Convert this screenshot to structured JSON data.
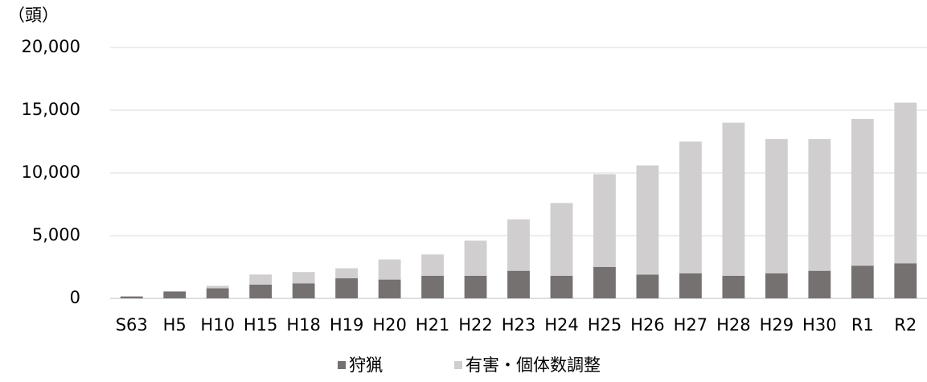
{
  "chart_data": {
    "type": "stacked_bar",
    "unit_label": "（頭）",
    "categories": [
      "S63",
      "H5",
      "H10",
      "H15",
      "H18",
      "H19",
      "H20",
      "H21",
      "H22",
      "H23",
      "H24",
      "H25",
      "H26",
      "H27",
      "H28",
      "H29",
      "H30",
      "R1",
      "R2"
    ],
    "series": [
      {
        "name": "狩猟",
        "color": "#767171",
        "values": [
          150,
          550,
          800,
          1100,
          1200,
          1600,
          1500,
          1800,
          1800,
          2200,
          1800,
          2500,
          1900,
          2000,
          1800,
          2000,
          2200,
          2600,
          2800
        ]
      },
      {
        "name": "有害・個体数調整",
        "color": "#d0cece",
        "values": [
          30,
          0,
          200,
          800,
          900,
          800,
          1600,
          1700,
          2800,
          4100,
          5800,
          7400,
          8700,
          10500,
          12200,
          10700,
          10500,
          11700,
          12800
        ]
      }
    ],
    "ylim": [
      0,
      20000
    ],
    "yticks": [
      0,
      {
        "value": 5000,
        "label": "5,000"
      },
      {
        "value": 10000,
        "label": "10,000"
      },
      {
        "value": 15000,
        "label": "15,000"
      },
      {
        "value": 20000,
        "label": "20,000"
      }
    ],
    "grid": true,
    "legend": "bottom"
  }
}
